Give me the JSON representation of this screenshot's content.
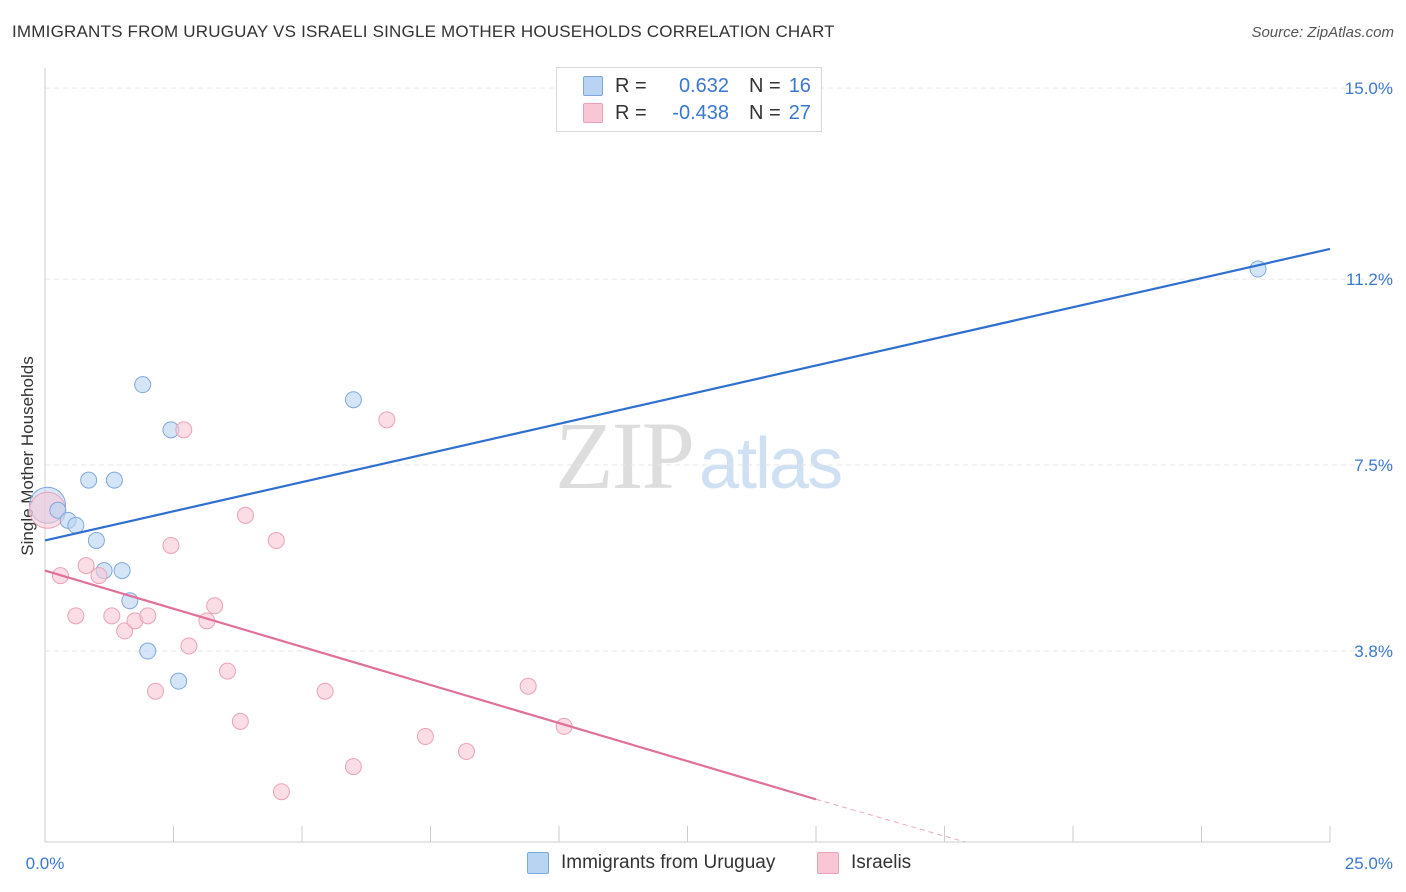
{
  "title": "IMMIGRANTS FROM URUGUAY VS ISRAELI SINGLE MOTHER HOUSEHOLDS CORRELATION CHART",
  "source": "Source: ZipAtlas.com",
  "watermark": {
    "zip": "ZIP",
    "atlas": "atlas"
  },
  "legend": {
    "r_label": "R =",
    "n_label": "N =",
    "series": [
      {
        "name": "Immigrants from Uruguay",
        "r": "0.632",
        "n": "16"
      },
      {
        "name": "Israelis",
        "r": "-0.438",
        "n": "27"
      }
    ]
  },
  "colors": {
    "uruguay_fill": "#b9d3f3",
    "uruguay_stroke": "#7fa8dc",
    "uruguay_line": "#2f6fcf",
    "israelis_fill": "#f9c6d5",
    "israelis_stroke": "#eba2b8",
    "israelis_line": "#e0709a",
    "axis_text": "#3a78d0",
    "grid": "#e6e6e6"
  },
  "chart_data": {
    "type": "scatter",
    "title": "IMMIGRANTS FROM URUGUAY VS ISRAELI SINGLE MOTHER HOUSEHOLDS CORRELATION CHART",
    "xlabel": "",
    "ylabel": "Single Mother Households",
    "xlim": [
      0,
      25
    ],
    "ylim": [
      0,
      15.4
    ],
    "x_tick_labels": [
      "0.0%",
      "25.0%"
    ],
    "y_ticks": [
      3.8,
      7.5,
      11.2,
      15.0
    ],
    "y_tick_labels": [
      "3.8%",
      "7.5%",
      "11.2%",
      "15.0%"
    ],
    "series": [
      {
        "name": "Immigrants from Uruguay",
        "r": 0.632,
        "n": 16,
        "points": [
          {
            "x": 0.05,
            "y": 6.7,
            "big": true
          },
          {
            "x": 0.25,
            "y": 6.6
          },
          {
            "x": 0.45,
            "y": 6.4
          },
          {
            "x": 0.6,
            "y": 6.3
          },
          {
            "x": 0.85,
            "y": 7.2
          },
          {
            "x": 1.0,
            "y": 6.0
          },
          {
            "x": 1.15,
            "y": 5.4
          },
          {
            "x": 1.35,
            "y": 7.2
          },
          {
            "x": 1.5,
            "y": 5.4
          },
          {
            "x": 1.65,
            "y": 4.8
          },
          {
            "x": 1.9,
            "y": 9.1
          },
          {
            "x": 2.0,
            "y": 3.8
          },
          {
            "x": 2.45,
            "y": 8.2
          },
          {
            "x": 2.6,
            "y": 3.2
          },
          {
            "x": 6.0,
            "y": 8.8
          },
          {
            "x": 23.6,
            "y": 11.4
          }
        ],
        "trend": {
          "x0": 0,
          "y0": 6.0,
          "x1": 25,
          "y1": 11.8
        }
      },
      {
        "name": "Israelis",
        "r": -0.438,
        "n": 27,
        "points": [
          {
            "x": 0.05,
            "y": 6.6,
            "big": true
          },
          {
            "x": 0.3,
            "y": 5.3
          },
          {
            "x": 0.6,
            "y": 4.5
          },
          {
            "x": 0.8,
            "y": 5.5
          },
          {
            "x": 1.05,
            "y": 5.3
          },
          {
            "x": 1.3,
            "y": 4.5
          },
          {
            "x": 1.55,
            "y": 4.2
          },
          {
            "x": 1.75,
            "y": 4.4
          },
          {
            "x": 2.0,
            "y": 4.5
          },
          {
            "x": 2.15,
            "y": 3.0
          },
          {
            "x": 2.45,
            "y": 5.9
          },
          {
            "x": 2.7,
            "y": 8.2
          },
          {
            "x": 2.8,
            "y": 3.9
          },
          {
            "x": 3.15,
            "y": 4.4
          },
          {
            "x": 3.3,
            "y": 4.7
          },
          {
            "x": 3.55,
            "y": 3.4
          },
          {
            "x": 3.8,
            "y": 2.4
          },
          {
            "x": 3.9,
            "y": 6.5
          },
          {
            "x": 4.5,
            "y": 6.0
          },
          {
            "x": 4.6,
            "y": 1.0
          },
          {
            "x": 5.45,
            "y": 3.0
          },
          {
            "x": 6.0,
            "y": 1.5
          },
          {
            "x": 6.65,
            "y": 8.4
          },
          {
            "x": 7.4,
            "y": 2.1
          },
          {
            "x": 8.2,
            "y": 1.8
          },
          {
            "x": 9.4,
            "y": 3.1
          },
          {
            "x": 10.1,
            "y": 2.3
          }
        ],
        "trend": {
          "x0": 0,
          "y0": 5.4,
          "x1": 15,
          "y1": 0.85
        },
        "trend_dashed_extension": {
          "x0": 15,
          "y0": 0.85,
          "x1": 17.9,
          "y1": 0
        }
      }
    ],
    "grid": true,
    "legend_position": "top-center"
  }
}
